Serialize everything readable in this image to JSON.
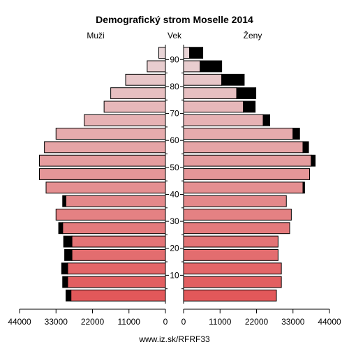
{
  "chart_data": {
    "type": "bar",
    "title": "Demografický strom Moselle 2014",
    "left_label": "Muži",
    "center_label": "Vek",
    "right_label": "Ženy",
    "source": "www.iz.sk/RFRF33",
    "x_ticks_left": [
      "44000",
      "33000",
      "22000",
      "11000",
      "0"
    ],
    "x_ticks_right": [
      "0",
      "11000",
      "22000",
      "33000",
      "44000"
    ],
    "age_ticks": [
      "10",
      "20",
      "30",
      "40",
      "50",
      "60",
      "70",
      "80",
      "90"
    ],
    "xlim": [
      0,
      44000
    ],
    "age_groups": [
      "0-4",
      "5-9",
      "10-14",
      "15-19",
      "20-24",
      "25-29",
      "30-34",
      "35-39",
      "40-44",
      "45-49",
      "50-54",
      "55-59",
      "60-64",
      "65-69",
      "70-74",
      "75-79",
      "80-84",
      "85-89",
      "90+"
    ],
    "series": [
      {
        "name": "Muži",
        "values": [
          28500,
          29500,
          29500,
          28200,
          28200,
          31000,
          33000,
          30000,
          36000,
          38000,
          38000,
          36500,
          33000,
          24500,
          18500,
          16500,
          12000,
          5500,
          2000
        ],
        "surplus_values": [
          1500,
          1500,
          1800,
          2200,
          2500,
          1200,
          0,
          1000,
          0,
          0,
          0,
          0,
          0,
          0,
          0,
          0,
          0,
          0,
          0
        ]
      },
      {
        "name": "Ženy",
        "values": [
          28000,
          29500,
          29500,
          28500,
          28500,
          32000,
          32500,
          31000,
          36000,
          38000,
          38500,
          36000,
          33000,
          24000,
          18000,
          16000,
          11500,
          5000,
          1800
        ],
        "surplus_values": [
          0,
          0,
          0,
          0,
          0,
          0,
          0,
          0,
          500,
          0,
          1200,
          1700,
          2000,
          2000,
          3600,
          5800,
          6800,
          6500,
          4000
        ]
      }
    ]
  }
}
